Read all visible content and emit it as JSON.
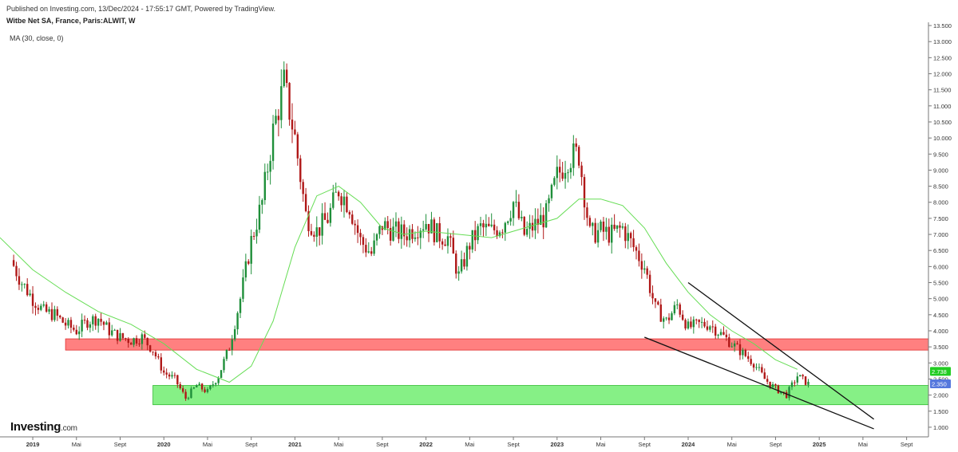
{
  "header": {
    "published": "Published on Investing.com, 13/Dec/2024 - 17:55:17 GMT, Powered by TradingView.",
    "title": "Witbe Net SA, France, Paris:ALWIT, W",
    "indicator": "MA (30, close, 0)"
  },
  "logo": {
    "text": "Investing",
    "domain": ".com"
  },
  "colors": {
    "up": "#1f8f3a",
    "down": "#b01818",
    "ma": "#66dd55",
    "resistance_fill": "#ff8080",
    "resistance_stroke": "#e03030",
    "support_fill": "#86f086",
    "support_stroke": "#33bb33",
    "last_price_bg": "#22cc22",
    "current_price_bg": "#5577dd"
  },
  "chart_data": {
    "type": "candlestick",
    "title": "Witbe Net SA, France, Paris:ALWIT, W",
    "x_ticks": [
      "2019",
      "Mai",
      "Sept",
      "2020",
      "Mai",
      "Sept",
      "2021",
      "Mai",
      "Sept",
      "2022",
      "Mai",
      "Sept",
      "2023",
      "Mai",
      "Sept",
      "2024",
      "Mai",
      "Sept",
      "2025",
      "Mai",
      "Sept"
    ],
    "x_tick_dates": [
      "2019-01",
      "2019-05",
      "2019-09",
      "2020-01",
      "2020-05",
      "2020-09",
      "2021-01",
      "2021-05",
      "2021-09",
      "2022-01",
      "2022-05",
      "2022-09",
      "2023-01",
      "2023-05",
      "2023-09",
      "2024-01",
      "2024-05",
      "2024-09",
      "2025-01",
      "2025-05",
      "2025-09"
    ],
    "x_range": [
      "2018-10",
      "2025-11"
    ],
    "y_ticks": [
      "13.500",
      "13.000",
      "12.500",
      "12.000",
      "11.500",
      "11.000",
      "10.500",
      "10.000",
      "9.500",
      "9.000",
      "8.500",
      "8.000",
      "7.500",
      "7.000",
      "6.500",
      "6.000",
      "5.500",
      "5.000",
      "4.500",
      "4.000",
      "3.500",
      "3.000",
      "2.500",
      "2.000",
      "1.500",
      "1.000"
    ],
    "ylim": [
      0.7,
      13.6
    ],
    "grid": false,
    "legend": "top-left",
    "series_closes": {
      "name": "ALWIT weekly close (approx.)",
      "points": [
        [
          "2018-11",
          6.2
        ],
        [
          "2018-12",
          5.5
        ],
        [
          "2019-01",
          5.0
        ],
        [
          "2019-02",
          4.6
        ],
        [
          "2019-03",
          4.5
        ],
        [
          "2019-04",
          4.2
        ],
        [
          "2019-05",
          4.0
        ],
        [
          "2019-06",
          4.3
        ],
        [
          "2019-07",
          4.4
        ],
        [
          "2019-08",
          4.0
        ],
        [
          "2019-09",
          3.8
        ],
        [
          "2019-10",
          3.7
        ],
        [
          "2019-11",
          3.8
        ],
        [
          "2019-12",
          3.4
        ],
        [
          "2020-01",
          2.7
        ],
        [
          "2020-02",
          2.5
        ],
        [
          "2020-03",
          1.9
        ],
        [
          "2020-04",
          2.3
        ],
        [
          "2020-05",
          2.1
        ],
        [
          "2020-06",
          2.6
        ],
        [
          "2020-07",
          3.5
        ],
        [
          "2020-08",
          5.0
        ],
        [
          "2020-09",
          6.8
        ],
        [
          "2020-10",
          8.0
        ],
        [
          "2020-11",
          10.2
        ],
        [
          "2020-12",
          11.7
        ],
        [
          "2021-01",
          10.0
        ],
        [
          "2021-02",
          7.6
        ],
        [
          "2021-03",
          7.1
        ],
        [
          "2021-04",
          7.5
        ],
        [
          "2021-05",
          8.4
        ],
        [
          "2021-06",
          7.9
        ],
        [
          "2021-07",
          6.8
        ],
        [
          "2021-08",
          6.4
        ],
        [
          "2021-09",
          7.3
        ],
        [
          "2021-10",
          7.1
        ],
        [
          "2021-11",
          7.0
        ],
        [
          "2021-12",
          7.2
        ],
        [
          "2022-01",
          7.4
        ],
        [
          "2022-02",
          7.0
        ],
        [
          "2022-03",
          6.9
        ],
        [
          "2022-04",
          5.7
        ],
        [
          "2022-05",
          6.7
        ],
        [
          "2022-06",
          7.2
        ],
        [
          "2022-07",
          7.1
        ],
        [
          "2022-08",
          7.3
        ],
        [
          "2022-09",
          8.0
        ],
        [
          "2022-10",
          7.0
        ],
        [
          "2022-11",
          7.3
        ],
        [
          "2022-12",
          7.6
        ],
        [
          "2023-01",
          8.8
        ],
        [
          "2023-02",
          9.4
        ],
        [
          "2023-03",
          9.5
        ],
        [
          "2023-04",
          7.0
        ],
        [
          "2023-05",
          7.1
        ],
        [
          "2023-06",
          7.0
        ],
        [
          "2023-07",
          7.2
        ],
        [
          "2023-08",
          6.6
        ],
        [
          "2023-09",
          6.0
        ],
        [
          "2023-10",
          4.7
        ],
        [
          "2023-11",
          4.3
        ],
        [
          "2023-12",
          4.8
        ],
        [
          "2024-01",
          4.1
        ],
        [
          "2024-02",
          4.2
        ],
        [
          "2024-03",
          4.2
        ],
        [
          "2024-04",
          3.9
        ],
        [
          "2024-05",
          3.6
        ],
        [
          "2024-06",
          3.3
        ],
        [
          "2024-07",
          3.0
        ],
        [
          "2024-08",
          2.5
        ],
        [
          "2024-09",
          2.2
        ],
        [
          "2024-10",
          2.0
        ],
        [
          "2024-11",
          2.6
        ],
        [
          "2024-12",
          2.35
        ]
      ]
    },
    "series_ma": {
      "name": "MA (30, close, 0)",
      "points": [
        [
          "2018-10",
          6.9
        ],
        [
          "2019-01",
          5.9
        ],
        [
          "2019-04",
          5.2
        ],
        [
          "2019-07",
          4.6
        ],
        [
          "2019-10",
          4.2
        ],
        [
          "2020-01",
          3.6
        ],
        [
          "2020-04",
          2.8
        ],
        [
          "2020-07",
          2.4
        ],
        [
          "2020-09",
          2.9
        ],
        [
          "2020-11",
          4.3
        ],
        [
          "2021-01",
          6.6
        ],
        [
          "2021-03",
          8.2
        ],
        [
          "2021-05",
          8.5
        ],
        [
          "2021-07",
          8.0
        ],
        [
          "2021-09",
          7.2
        ],
        [
          "2021-11",
          7.0
        ],
        [
          "2022-01",
          7.1
        ],
        [
          "2022-04",
          7.0
        ],
        [
          "2022-07",
          6.9
        ],
        [
          "2022-10",
          7.2
        ],
        [
          "2023-01",
          7.5
        ],
        [
          "2023-03",
          8.1
        ],
        [
          "2023-05",
          8.1
        ],
        [
          "2023-07",
          7.9
        ],
        [
          "2023-09",
          7.2
        ],
        [
          "2023-11",
          6.1
        ],
        [
          "2024-01",
          5.2
        ],
        [
          "2024-03",
          4.5
        ],
        [
          "2024-05",
          4.0
        ],
        [
          "2024-07",
          3.6
        ],
        [
          "2024-09",
          3.1
        ],
        [
          "2024-11",
          2.8
        ]
      ]
    },
    "zones": [
      {
        "name": "resistance",
        "from": 3.4,
        "to": 3.75,
        "start": "2019-04",
        "end": "2025-11"
      },
      {
        "name": "support",
        "from": 1.7,
        "to": 2.3,
        "start": "2019-12",
        "end": "2025-11"
      }
    ],
    "trendlines": [
      {
        "name": "upper",
        "points": [
          [
            "2024-01",
            5.5
          ],
          [
            "2025-06",
            1.25
          ]
        ]
      },
      {
        "name": "lower",
        "points": [
          [
            "2023-09",
            3.8
          ],
          [
            "2025-06",
            0.95
          ]
        ]
      }
    ],
    "price_labels": [
      {
        "name": "last-price",
        "value": "2.738"
      },
      {
        "name": "current-price",
        "value": "2.350"
      }
    ]
  }
}
